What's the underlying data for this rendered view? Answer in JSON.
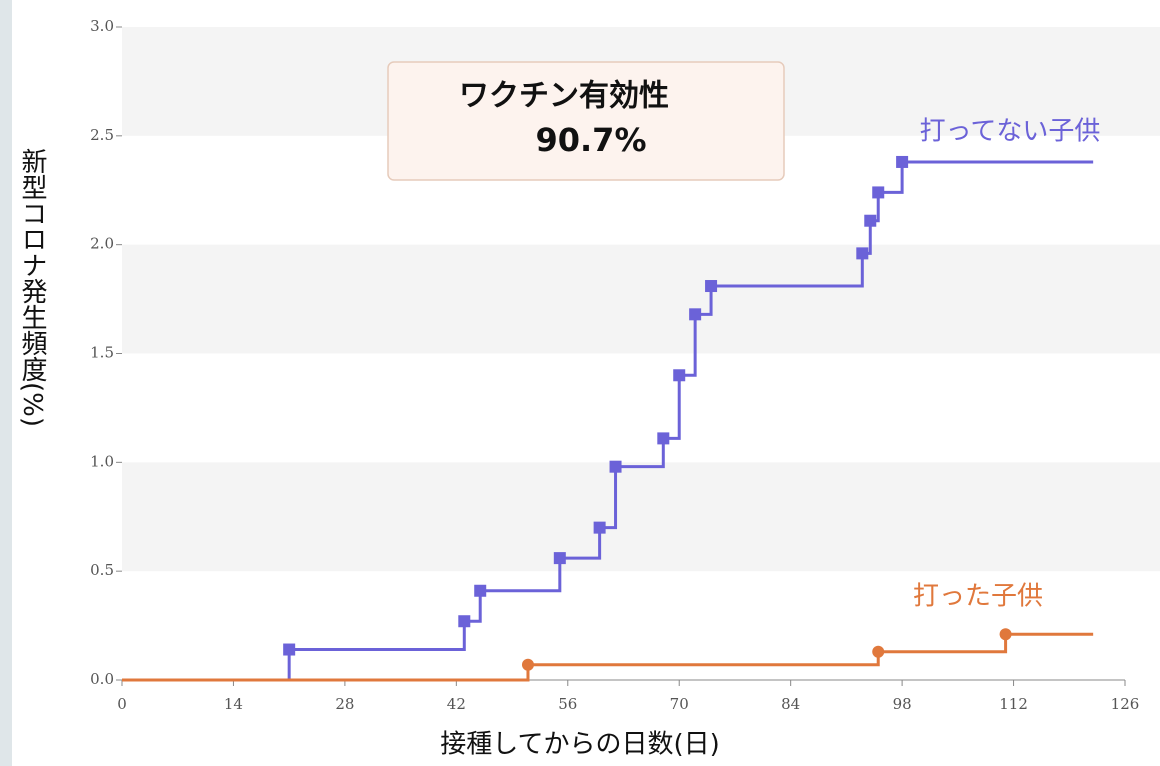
{
  "chart_data": {
    "type": "step",
    "annotation": [
      "ワクチン有効性",
      "90.7%"
    ],
    "xlabel": "接種してからの日数(日)",
    "ylabel": "新型コロナ発生頻度(%)",
    "xlim": [
      0,
      126
    ],
    "xticks": [
      0,
      14,
      28,
      42,
      56,
      70,
      84,
      98,
      112,
      126
    ],
    "ylim": [
      0,
      3
    ],
    "yticks": [
      {
        "value": 0,
        "label": "0.0"
      },
      {
        "value": 0.5,
        "label": "0.5"
      },
      {
        "value": 1,
        "label": "1.0"
      },
      {
        "value": 1.5,
        "label": "1.5"
      },
      {
        "value": 2,
        "label": "2.0"
      },
      {
        "value": 2.5,
        "label": "2.5"
      },
      {
        "value": 3,
        "label": "3.0"
      }
    ],
    "grid": "bands",
    "series": [
      {
        "name": "打ってない子供",
        "color": "#6b62d8",
        "marker": "square",
        "x": [
          0,
          21,
          43,
          45,
          55,
          60,
          62,
          68,
          70,
          72,
          74,
          93,
          94,
          95,
          98,
          122
        ],
        "values": [
          0,
          0.14,
          0.27,
          0.41,
          0.56,
          0.7,
          0.98,
          1.11,
          1.4,
          1.68,
          1.81,
          1.96,
          2.11,
          2.24,
          2.38,
          2.38
        ]
      },
      {
        "name": "打った子供",
        "color": "#e0783c",
        "marker": "circle",
        "x": [
          0,
          51,
          95,
          111,
          122
        ],
        "values": [
          0,
          0.07,
          0.13,
          0.21,
          0.21
        ]
      }
    ]
  }
}
